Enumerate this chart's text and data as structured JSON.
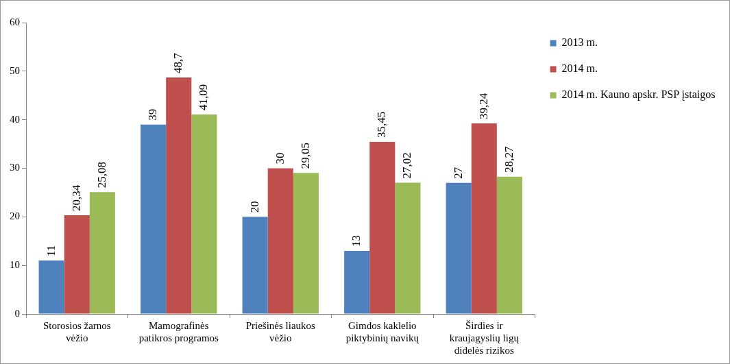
{
  "chart_data": {
    "type": "bar",
    "categories": [
      "Storosios žarnos vėžio",
      "Mamografinės patikros programos",
      "Priešinės liaukos vėžio",
      "Gimdos kaklelio piktybinių navikų",
      "Širdies ir kraujagyslių ligų didelės rizikos"
    ],
    "series": [
      {
        "name": "2013 m.",
        "color": "#4f81bd",
        "values": [
          11,
          39,
          20,
          13,
          27
        ],
        "value_labels": [
          "11",
          "39",
          "20",
          "13",
          "27"
        ]
      },
      {
        "name": "2014 m.",
        "color": "#c0504d",
        "values": [
          20.34,
          48.7,
          30,
          35.45,
          39.24
        ],
        "value_labels": [
          "20,34",
          "48,7",
          "30",
          "35,45",
          "39,24"
        ]
      },
      {
        "name": "2014 m. Kauno apskr. PSP įstaigos",
        "color": "#9bbb59",
        "values": [
          25.08,
          41.09,
          29.05,
          27.02,
          28.27
        ],
        "value_labels": [
          "25,08",
          "41,09",
          "29,05",
          "27,02",
          "28,27"
        ]
      }
    ],
    "ylim": [
      0,
      60
    ],
    "yticks": [
      0,
      10,
      20,
      30,
      40,
      50,
      60
    ],
    "grid": false,
    "legend": "right"
  }
}
